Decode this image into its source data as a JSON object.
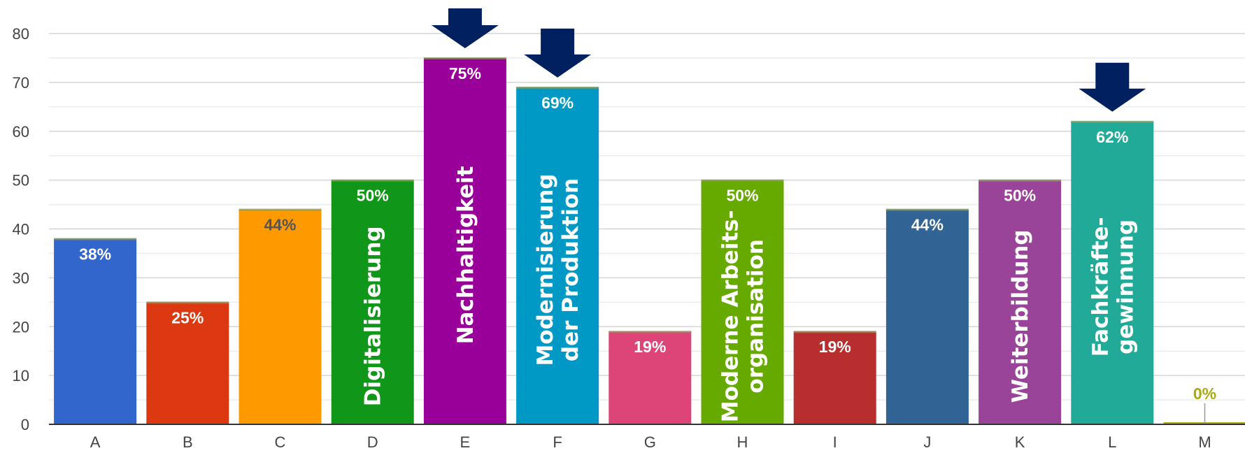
{
  "chart_data": {
    "type": "bar",
    "ylim": [
      0,
      80
    ],
    "yticks": [
      0,
      10,
      20,
      30,
      40,
      50,
      60,
      70,
      80
    ],
    "categories": [
      "A",
      "B",
      "C",
      "D",
      "E",
      "F",
      "G",
      "H",
      "I",
      "J",
      "K",
      "L",
      "M"
    ],
    "values": [
      38,
      25,
      44,
      50,
      75,
      69,
      19,
      50,
      19,
      44,
      50,
      62,
      0
    ],
    "data_labels": [
      "38%",
      "25%",
      "44%",
      "50%",
      "75%",
      "69%",
      "19%",
      "50%",
      "19%",
      "44%",
      "50%",
      "62%",
      "0%"
    ],
    "colors": [
      "#3366cc",
      "#dc3912",
      "#ff9900",
      "#109618",
      "#990099",
      "#0099c6",
      "#dd4477",
      "#66aa00",
      "#b82e2e",
      "#316395",
      "#994499",
      "#22aa99",
      "#aaaa11"
    ],
    "label_colors": [
      "#ffffff",
      "#ffffff",
      "#555555",
      "#ffffff",
      "#ffffff",
      "#ffffff",
      "#ffffff",
      "#ffffff",
      "#ffffff",
      "#ffffff",
      "#ffffff",
      "#ffffff",
      "#aaaa11"
    ],
    "annotations": [
      {
        "category": "D",
        "lines": [
          "Digitalisierung"
        ]
      },
      {
        "category": "E",
        "lines": [
          "Nachhaltigkeit"
        ]
      },
      {
        "category": "F",
        "lines": [
          "Modernisierung",
          "der Produktion"
        ]
      },
      {
        "category": "H",
        "lines": [
          "Moderne Arbeits-",
          "organisation"
        ]
      },
      {
        "category": "K",
        "lines": [
          "Weiterbildung"
        ]
      },
      {
        "category": "L",
        "lines": [
          "Fachkräfte-",
          "gewinnung"
        ]
      }
    ],
    "highlight_arrows": [
      "E",
      "F",
      "L"
    ],
    "arrow_color": "#002060",
    "grid": true,
    "legend": "none"
  }
}
